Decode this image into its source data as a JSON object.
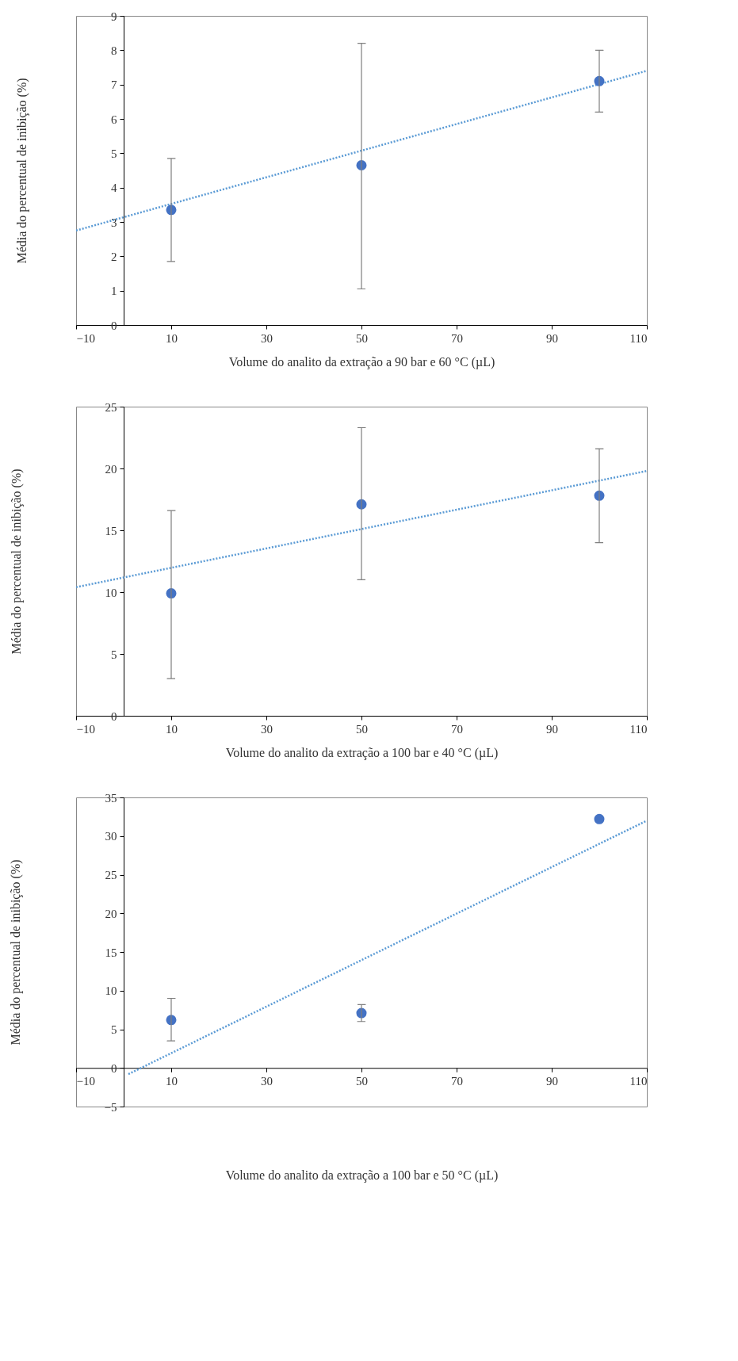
{
  "chart_data": [
    {
      "type": "scatter",
      "xlabel": "Volume do analito da extração a 90 bar e 60 °C (µL)",
      "ylabel": "Média do percentual de inibição (%)",
      "xlim": [
        -10,
        110
      ],
      "xticks": [
        -10,
        10,
        30,
        50,
        70,
        90,
        110
      ],
      "ylim": [
        0,
        9
      ],
      "yticks": [
        0,
        1,
        2,
        3,
        4,
        5,
        6,
        7,
        8,
        9
      ],
      "grid": false,
      "series": [
        {
          "color": "#4472c4",
          "marker": "circle",
          "x": [
            10,
            50,
            100
          ],
          "values": [
            3.35,
            4.65,
            7.1
          ],
          "errors": [
            [
              1.85,
              4.85
            ],
            [
              1.05,
              8.2
            ],
            [
              6.2,
              8.0
            ]
          ]
        },
        {
          "type": "line",
          "color": "#5b9bd5",
          "marker": "none",
          "line_style": "dotted",
          "x": [
            -10,
            110
          ],
          "values": [
            2.75,
            7.4
          ]
        }
      ]
    },
    {
      "type": "scatter",
      "xlabel": "Volume do analito da extração a 100 bar e 40 °C (µL)",
      "ylabel": "Média do percentual de inibição (%)",
      "xlim": [
        -10,
        110
      ],
      "xticks": [
        -10,
        10,
        30,
        50,
        70,
        90,
        110
      ],
      "ylim": [
        0,
        25
      ],
      "yticks": [
        0,
        5,
        10,
        15,
        20,
        25
      ],
      "grid": false,
      "series": [
        {
          "color": "#4472c4",
          "marker": "circle",
          "x": [
            10,
            50,
            100
          ],
          "values": [
            9.9,
            17.1,
            17.8
          ],
          "errors": [
            [
              3.0,
              16.6
            ],
            [
              11.0,
              23.3
            ],
            [
              14.0,
              21.6
            ]
          ]
        },
        {
          "type": "line",
          "color": "#5b9bd5",
          "marker": "none",
          "line_style": "dotted",
          "x": [
            -10,
            110
          ],
          "values": [
            10.4,
            19.8
          ]
        }
      ]
    },
    {
      "type": "scatter",
      "xlabel": "Volume do analito da extração a 100 bar e 50 °C (µL)",
      "ylabel": "Média do percentual de inibição (%)",
      "xlim": [
        -10,
        110
      ],
      "xticks": [
        -10,
        10,
        30,
        50,
        70,
        90,
        110
      ],
      "ylim": [
        -5,
        35
      ],
      "yticks": [
        -5,
        0,
        5,
        10,
        15,
        20,
        25,
        30,
        35
      ],
      "grid": false,
      "series": [
        {
          "color": "#4472c4",
          "marker": "circle",
          "x": [
            10,
            50,
            100
          ],
          "values": [
            6.2,
            7.1,
            32.2
          ],
          "errors": [
            [
              3.5,
              9.0
            ],
            [
              6.0,
              8.2
            ],
            null
          ]
        },
        {
          "type": "line",
          "color": "#5b9bd5",
          "marker": "none",
          "line_style": "dotted",
          "x": [
            1,
            110
          ],
          "values": [
            -0.8,
            32
          ]
        }
      ]
    }
  ]
}
